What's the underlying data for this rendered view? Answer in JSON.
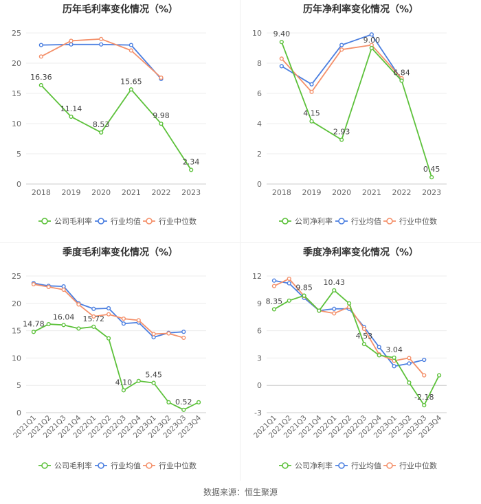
{
  "legend_labels": {
    "industry_avg": "行业均值",
    "industry_median": "行业中位数"
  },
  "colors": {
    "company": "#5cc13a",
    "industry_avg": "#4a7ee0",
    "industry_median": "#f4906a"
  },
  "source": "数据来源：恒生聚源",
  "chart_data": [
    {
      "type": "line",
      "title": "历年毛利率变化情况（%）",
      "categories": [
        "2018",
        "2019",
        "2020",
        "2021",
        "2022",
        "2023"
      ],
      "ylim": [
        0,
        25
      ],
      "yticks": [
        0,
        5,
        10,
        15,
        20,
        25
      ],
      "ytick_labels": [
        "0",
        "5",
        "10",
        "15",
        "20",
        "25"
      ],
      "grid": true,
      "legend_position": "bottom",
      "series": [
        {
          "name": "公司毛利率",
          "key": "company",
          "values": [
            16.36,
            11.14,
            8.53,
            15.65,
            9.98,
            2.34
          ],
          "labels": [
            "16.36",
            "11.14",
            "8.53",
            "15.65",
            "9.98",
            "2.34"
          ]
        },
        {
          "name": "行业均值",
          "key": "industry_avg",
          "values": [
            23.0,
            23.1,
            23.1,
            23.0,
            17.4,
            null
          ]
        },
        {
          "name": "行业中位数",
          "key": "industry_median",
          "values": [
            21.1,
            23.7,
            24.0,
            22.1,
            17.6,
            null
          ]
        }
      ]
    },
    {
      "type": "line",
      "title": "历年净利率变化情况（%）",
      "categories": [
        "2018",
        "2019",
        "2020",
        "2021",
        "2022",
        "2023"
      ],
      "ylim": [
        0,
        10
      ],
      "yticks": [
        0,
        2,
        4,
        6,
        8,
        10
      ],
      "ytick_labels": [
        "0",
        "2",
        "4",
        "6",
        "8",
        "10"
      ],
      "grid": true,
      "legend_position": "bottom",
      "series": [
        {
          "name": "公司净利率",
          "key": "company",
          "values": [
            9.4,
            4.15,
            2.93,
            9.0,
            6.84,
            0.45
          ],
          "labels": [
            "9.40",
            "4.15",
            "2.93",
            "9.00",
            "6.84",
            "0.45"
          ]
        },
        {
          "name": "行业均值",
          "key": "industry_avg",
          "values": [
            7.8,
            6.6,
            9.2,
            9.9,
            6.9,
            null
          ]
        },
        {
          "name": "行业中位数",
          "key": "industry_median",
          "values": [
            8.3,
            6.1,
            8.9,
            9.2,
            7.0,
            null
          ]
        }
      ]
    },
    {
      "type": "line",
      "title": "季度毛利率变化情况（%）",
      "categories": [
        "2021Q1",
        "2021Q2",
        "2021Q3",
        "2021Q4",
        "2022Q1",
        "2022Q2",
        "2022Q3",
        "2022Q4",
        "2023Q1",
        "2023Q2",
        "2023Q3",
        "2023Q4"
      ],
      "ylim": [
        0,
        25
      ],
      "yticks": [
        0,
        5,
        10,
        15,
        20,
        25
      ],
      "ytick_labels": [
        "0",
        "5",
        "10",
        "15",
        "20",
        "25"
      ],
      "grid": true,
      "legend_position": "bottom",
      "series": [
        {
          "name": "公司毛利率",
          "key": "company",
          "values": [
            14.78,
            16.2,
            16.04,
            15.4,
            15.72,
            13.6,
            4.1,
            5.8,
            5.45,
            1.9,
            0.52,
            1.9
          ],
          "labels": [
            "14.78",
            "",
            "16.04",
            "",
            "15.72",
            "",
            "4.10",
            "",
            "5.45",
            "",
            "0.52",
            ""
          ]
        },
        {
          "name": "行业均值",
          "key": "industry_avg",
          "values": [
            23.7,
            23.2,
            23.1,
            20.0,
            19.0,
            19.1,
            16.3,
            16.5,
            13.8,
            14.6,
            14.8,
            null
          ]
        },
        {
          "name": "行业中位数",
          "key": "industry_median",
          "values": [
            23.5,
            23.0,
            22.5,
            19.8,
            17.6,
            18.0,
            17.2,
            16.9,
            14.4,
            14.5,
            13.7,
            null
          ]
        }
      ]
    },
    {
      "type": "line",
      "title": "季度净利率变化情况（%）",
      "categories": [
        "2021Q1",
        "2021Q2",
        "2021Q3",
        "2021Q4",
        "2022Q1",
        "2022Q2",
        "2022Q3",
        "2022Q4",
        "2023Q1",
        "2023Q2",
        "2023Q3",
        "2023Q4"
      ],
      "ylim": [
        -3,
        12
      ],
      "yticks": [
        -3,
        0,
        3,
        6,
        9,
        12
      ],
      "ytick_labels": [
        "-3",
        "0",
        "3",
        "6",
        "9",
        "12"
      ],
      "grid": true,
      "legend_position": "bottom",
      "series": [
        {
          "name": "公司净利率",
          "key": "company",
          "values": [
            8.35,
            9.3,
            9.85,
            8.2,
            10.43,
            9.0,
            4.53,
            3.3,
            3.04,
            0.3,
            -2.18,
            1.1
          ],
          "labels": [
            "8.35",
            "",
            "9.85",
            "",
            "10.43",
            "",
            "4.53",
            "",
            "3.04",
            "",
            "-2.18",
            ""
          ]
        },
        {
          "name": "行业均值",
          "key": "industry_avg",
          "values": [
            11.5,
            11.2,
            9.6,
            8.2,
            8.4,
            8.4,
            6.4,
            4.2,
            2.1,
            2.4,
            2.8,
            null
          ]
        },
        {
          "name": "行业中位数",
          "key": "industry_median",
          "values": [
            10.9,
            11.7,
            9.8,
            8.2,
            7.9,
            8.6,
            6.2,
            3.4,
            2.7,
            3.0,
            1.1,
            null
          ]
        }
      ]
    }
  ]
}
